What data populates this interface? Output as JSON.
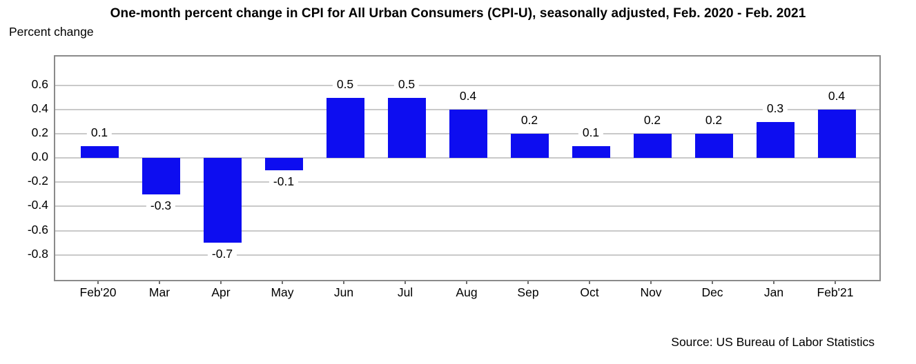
{
  "source": "Source: US Bureau of Labor Statistics",
  "colors": {
    "bar": "#0d0df0",
    "grid": "#c9c9c9",
    "axis": "#8a8a8a",
    "text": "#000000",
    "background": "#ffffff"
  },
  "chart_data": {
    "type": "bar",
    "title": "One-month percent change in CPI for All Urban Consumers (CPI-U), seasonally adjusted, Feb. 2020 - Feb. 2021",
    "ylabel": "Percent change",
    "xlabel": "",
    "categories": [
      "Feb'20",
      "Mar",
      "Apr",
      "May",
      "Jun",
      "Jul",
      "Aug",
      "Sep",
      "Oct",
      "Nov",
      "Dec",
      "Jan",
      "Feb'21"
    ],
    "values": [
      0.1,
      -0.3,
      -0.7,
      -0.1,
      0.5,
      0.5,
      0.4,
      0.2,
      0.1,
      0.2,
      0.2,
      0.3,
      0.4
    ],
    "bar_labels": [
      "0.1",
      "-0.3",
      "-0.7",
      "-0.1",
      "0.5",
      "0.5",
      "0.4",
      "0.2",
      "0.1",
      "0.2",
      "0.2",
      "0.3",
      "0.4"
    ],
    "yticks": [
      0.6,
      0.4,
      0.2,
      0.0,
      -0.2,
      -0.4,
      -0.6,
      -0.8
    ],
    "ytick_labels": [
      "0.6",
      "0.4",
      "0.2",
      "0.0",
      "-0.2",
      "-0.4",
      "-0.6",
      "-0.8"
    ],
    "ylim": [
      -1.03,
      0.84
    ],
    "grid": "horizontal",
    "legend": "none"
  }
}
